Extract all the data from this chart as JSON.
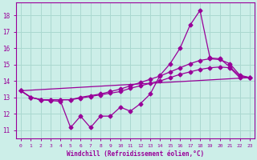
{
  "bg_color": "#cceee8",
  "grid_color": "#aad8d0",
  "line_color": "#990099",
  "xlabel": "Windchill (Refroidissement éolien,°C)",
  "ylim": [
    10.5,
    18.8
  ],
  "xlim": [
    -0.5,
    23.5
  ],
  "yticks": [
    11,
    12,
    13,
    14,
    15,
    16,
    17,
    18
  ],
  "xticks": [
    0,
    1,
    2,
    3,
    4,
    5,
    6,
    7,
    8,
    9,
    10,
    11,
    12,
    13,
    14,
    15,
    16,
    17,
    18,
    19,
    20,
    21,
    22,
    23
  ],
  "series_zigzag": {
    "x": [
      0,
      1,
      2,
      3,
      4,
      5,
      6,
      7,
      8,
      9,
      10,
      11,
      12,
      13,
      14,
      15,
      16,
      17,
      18,
      19,
      20,
      21,
      22,
      23
    ],
    "y": [
      13.4,
      13.0,
      12.85,
      12.8,
      12.75,
      11.15,
      11.85,
      11.15,
      11.85,
      11.85,
      12.4,
      12.15,
      12.6,
      13.2,
      14.35,
      15.05,
      16.0,
      17.4,
      18.3,
      15.4,
      15.35,
      14.85,
      14.3,
      14.2
    ]
  },
  "series_smooth_upper": {
    "x": [
      0,
      1,
      2,
      3,
      4,
      5,
      6,
      7,
      8,
      9,
      10,
      11,
      12,
      13,
      14,
      15,
      16,
      17,
      18,
      19,
      20,
      21,
      22,
      23
    ],
    "y": [
      13.4,
      13.0,
      12.85,
      12.85,
      12.85,
      12.85,
      13.0,
      13.1,
      13.2,
      13.35,
      13.5,
      13.7,
      13.9,
      14.1,
      14.3,
      14.55,
      14.8,
      15.05,
      15.25,
      15.35,
      15.3,
      15.05,
      14.35,
      14.2
    ]
  },
  "series_smooth_lower": {
    "x": [
      0,
      1,
      2,
      3,
      4,
      5,
      6,
      7,
      8,
      9,
      10,
      11,
      12,
      13,
      14,
      15,
      16,
      17,
      18,
      19,
      20,
      21,
      22,
      23
    ],
    "y": [
      13.4,
      13.0,
      12.85,
      12.85,
      12.85,
      12.85,
      12.95,
      13.05,
      13.15,
      13.25,
      13.35,
      13.55,
      13.7,
      13.85,
      14.0,
      14.2,
      14.4,
      14.55,
      14.7,
      14.8,
      14.85,
      14.8,
      14.2,
      14.2
    ]
  },
  "series_line": {
    "x": [
      0,
      23
    ],
    "y": [
      13.4,
      14.2
    ]
  }
}
